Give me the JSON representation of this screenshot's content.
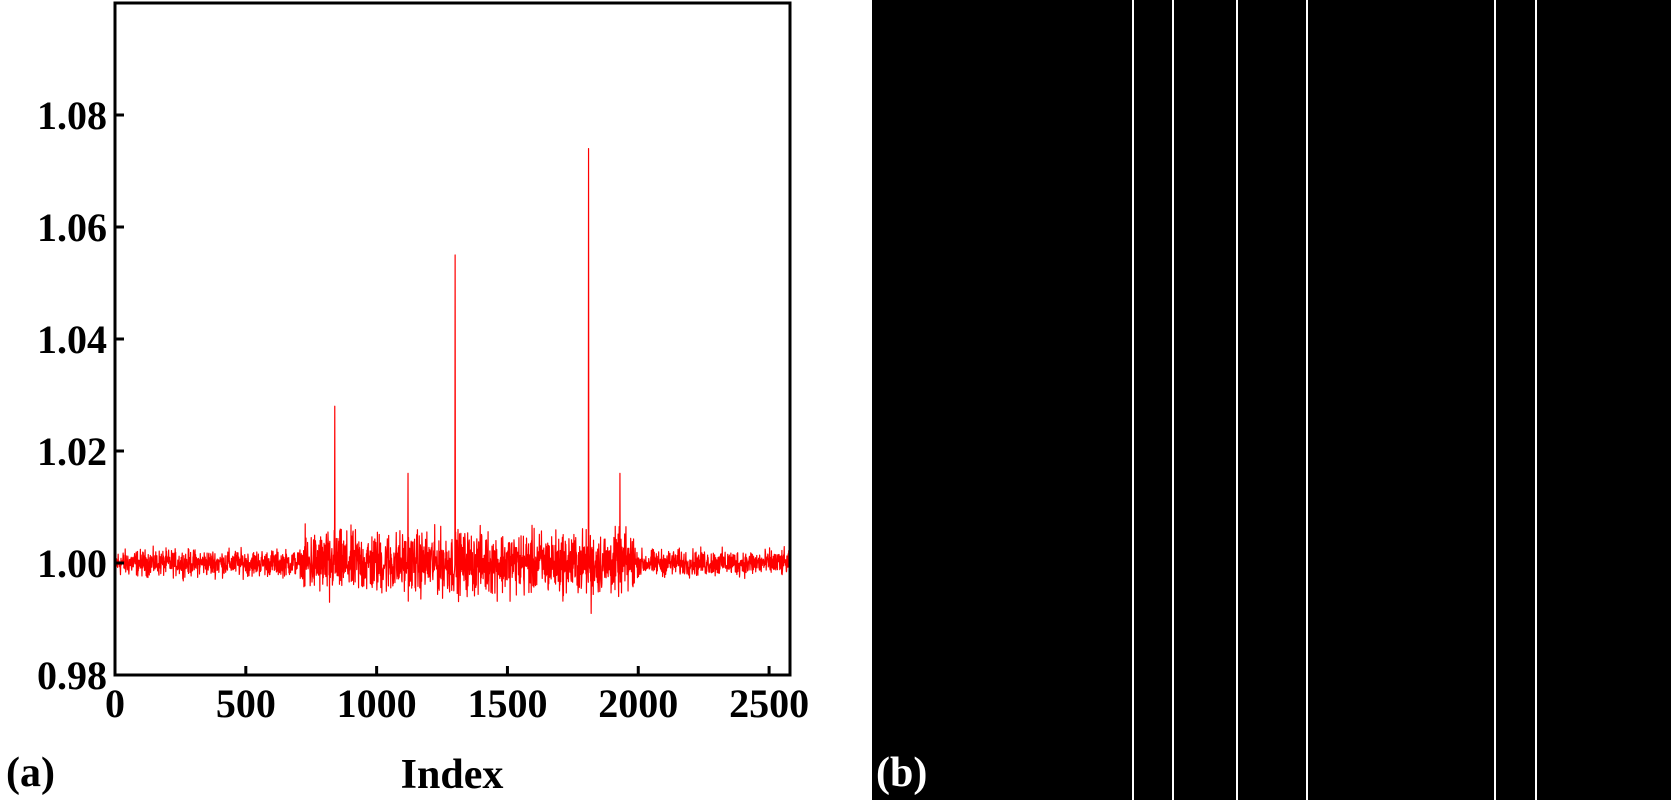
{
  "panel_a": {
    "label": "(a)"
  },
  "panel_b": {
    "label": "(b)",
    "background_color": "#000000",
    "stripe_color": "#ffffff",
    "stripes_at_index": [
      840,
      970,
      1175,
      1400,
      2010,
      2140
    ],
    "index_range": [
      0,
      2580
    ]
  },
  "chart_data": {
    "type": "line",
    "title": "",
    "xlabel": "Index",
    "ylabel": "",
    "xlim": [
      0,
      2580
    ],
    "ylim": [
      0.98,
      1.1
    ],
    "xticks": [
      0,
      500,
      1000,
      1500,
      2000,
      2500
    ],
    "xtick_labels": [
      "0",
      "500",
      "1000",
      "1500",
      "2000",
      "2500"
    ],
    "yticks": [
      0.98,
      1.0,
      1.02,
      1.04,
      1.06,
      1.08
    ],
    "ytick_labels": [
      "0.98",
      "1.00",
      "1.02",
      "1.04",
      "1.06",
      "1.08"
    ],
    "grid": false,
    "series": [
      {
        "color": "#ff0000",
        "baseline": 1.0,
        "n_points": 2580,
        "noise_segments": [
          {
            "x": [
              0,
              720
            ],
            "amplitude": 0.0025
          },
          {
            "x": [
              720,
              1990
            ],
            "amplitude": 0.006
          },
          {
            "x": [
              1990,
              2580
            ],
            "amplitude": 0.0025
          }
        ],
        "peaks": [
          {
            "x": 840,
            "y": 1.028
          },
          {
            "x": 1120,
            "y": 1.016
          },
          {
            "x": 1300,
            "y": 1.055
          },
          {
            "x": 1810,
            "y": 1.074
          },
          {
            "x": 1930,
            "y": 1.016
          }
        ],
        "dips": [
          {
            "x": 820,
            "y": 0.993
          },
          {
            "x": 1820,
            "y": 0.991
          }
        ]
      }
    ]
  }
}
